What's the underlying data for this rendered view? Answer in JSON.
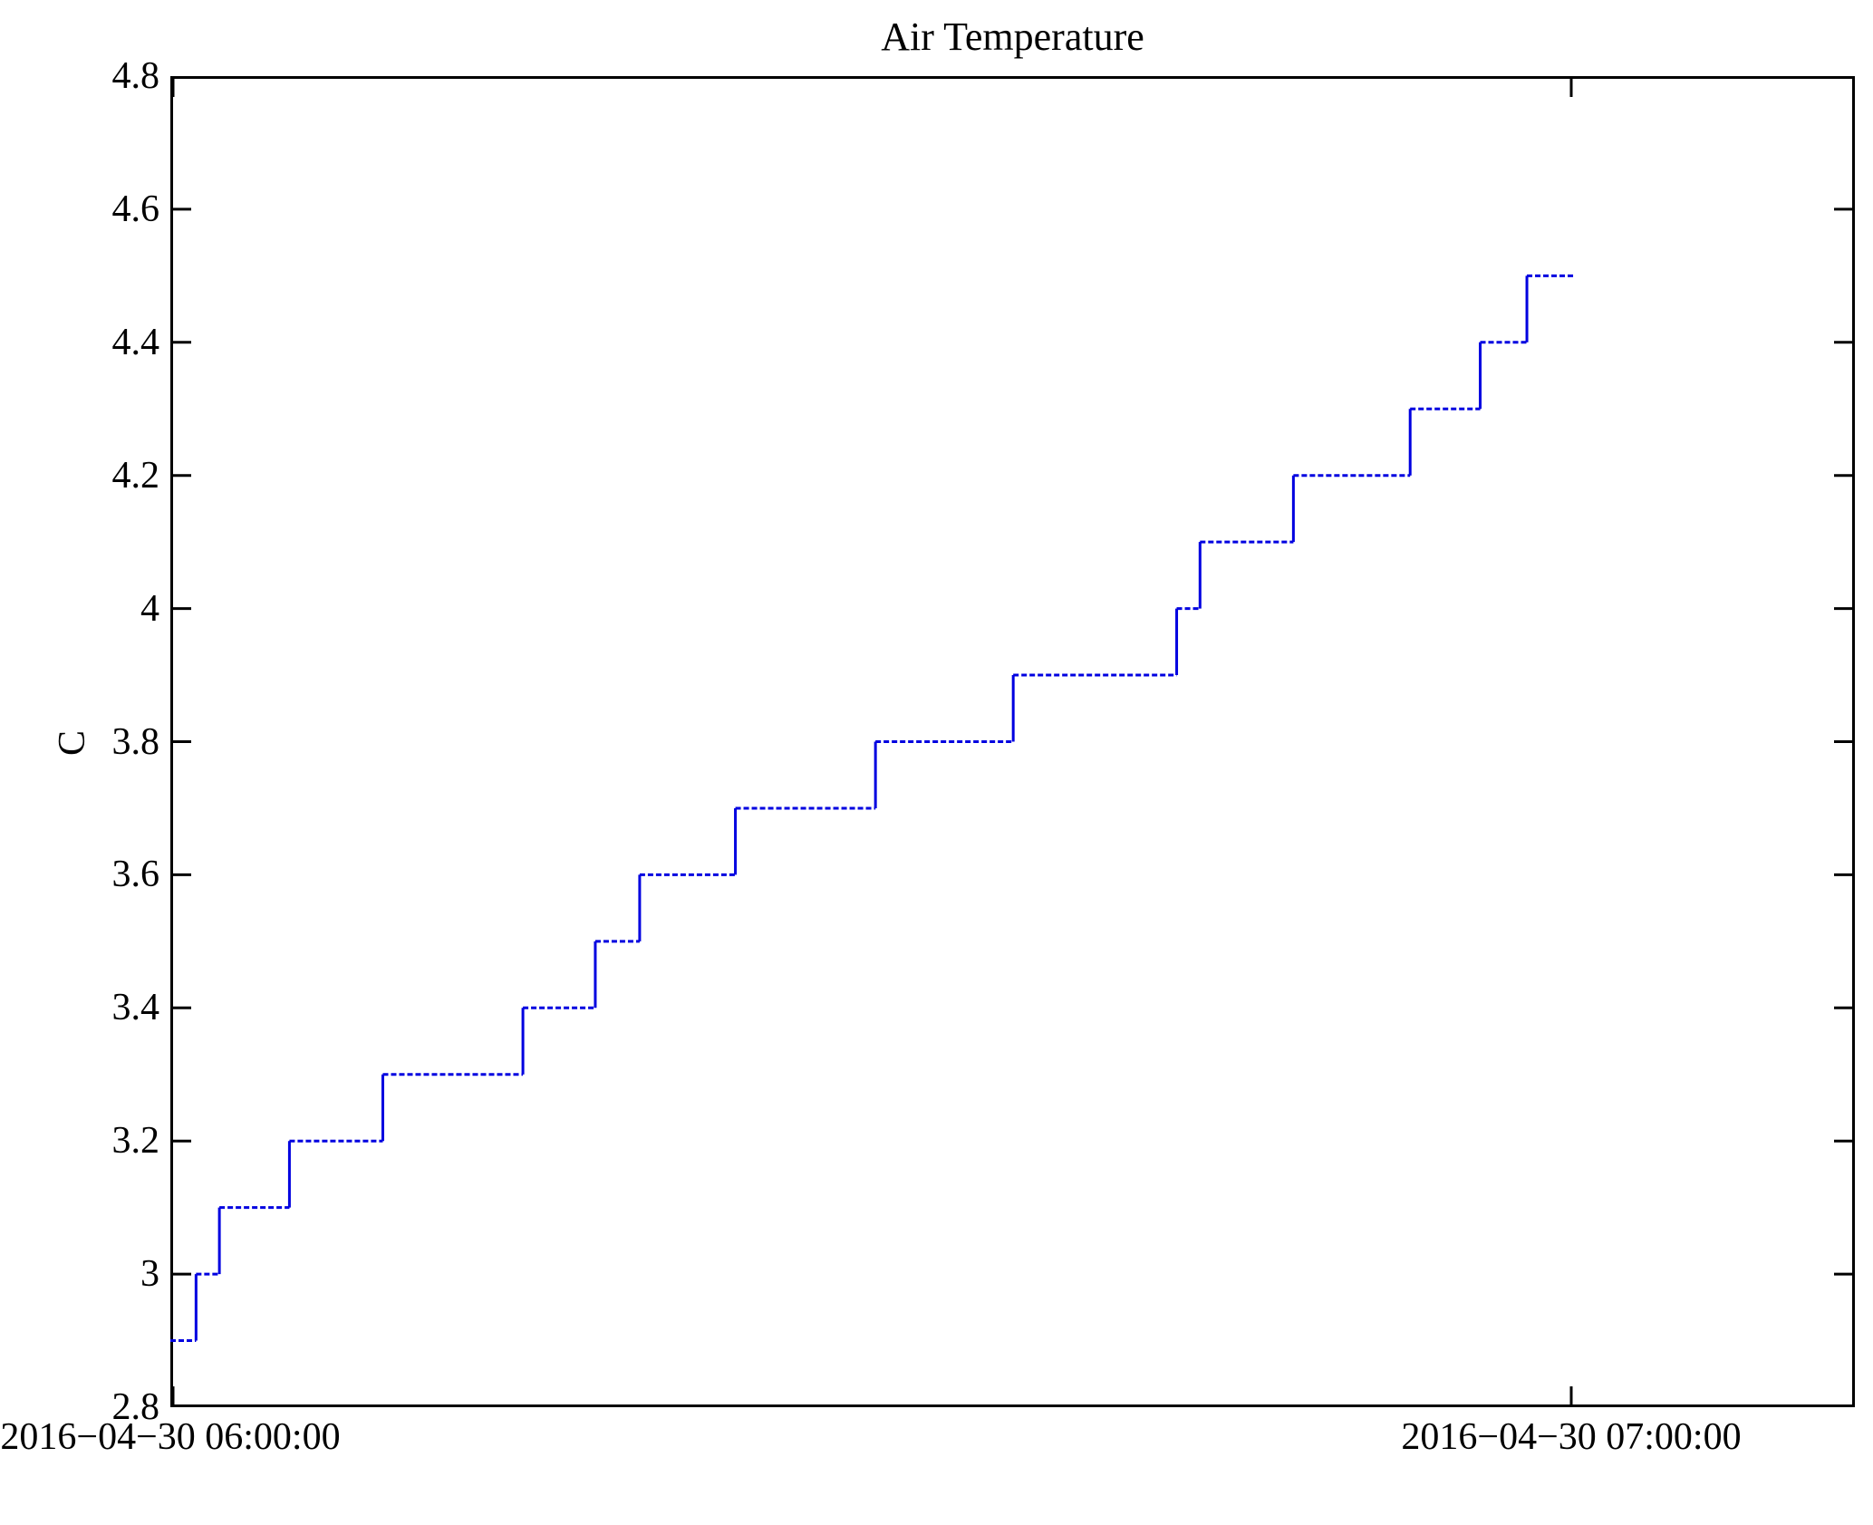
{
  "title": "Air Temperature",
  "chart_data": {
    "type": "line",
    "line_style": "step-post",
    "title": "Air Temperature",
    "xlabel": "",
    "ylabel": "C",
    "grid": false,
    "legend": null,
    "line_color": "#0000e0",
    "axis_color": "#000000",
    "background_color": "#ffffff",
    "ylim": [
      2.8,
      4.8
    ],
    "y_ticks": [
      {
        "label": "2.8",
        "value": 2.8
      },
      {
        "label": "3",
        "value": 3.0
      },
      {
        "label": "3.2",
        "value": 3.2
      },
      {
        "label": "3.4",
        "value": 3.4
      },
      {
        "label": "3.6",
        "value": 3.6
      },
      {
        "label": "3.8",
        "value": 3.8
      },
      {
        "label": "4",
        "value": 4.0
      },
      {
        "label": "4.2",
        "value": 4.2
      },
      {
        "label": "4.4",
        "value": 4.4
      },
      {
        "label": "4.6",
        "value": 4.6
      },
      {
        "label": "4.8",
        "value": 4.8
      }
    ],
    "x_ticks": [
      {
        "label": "2016−04−30 06:00:00",
        "minutes": 0
      },
      {
        "label": "2016−04−30 07:00:00",
        "minutes": 60
      }
    ],
    "x_range_minutes": [
      0,
      72.1
    ],
    "series": [
      {
        "name": "Air Temperature",
        "unit": "C",
        "steps": [
          {
            "time": "2016-04-30 06:00:00",
            "minutes": 0.0,
            "value": 2.9
          },
          {
            "time": "2016-04-30 06:01:00",
            "minutes": 1.1,
            "value": 3.0
          },
          {
            "time": "2016-04-30 06:02:00",
            "minutes": 2.1,
            "value": 3.1
          },
          {
            "time": "2016-04-30 06:05:00",
            "minutes": 5.1,
            "value": 3.2
          },
          {
            "time": "2016-04-30 06:09:00",
            "minutes": 9.1,
            "value": 3.3
          },
          {
            "time": "2016-04-30 06:15:00",
            "minutes": 15.1,
            "value": 3.4
          },
          {
            "time": "2016-04-30 06:18:00",
            "minutes": 18.2,
            "value": 3.5
          },
          {
            "time": "2016-04-30 06:20:00",
            "minutes": 20.1,
            "value": 3.6
          },
          {
            "time": "2016-04-30 06:24:00",
            "minutes": 24.2,
            "value": 3.7
          },
          {
            "time": "2016-04-30 06:30:00",
            "minutes": 30.2,
            "value": 3.8
          },
          {
            "time": "2016-04-30 06:36:00",
            "minutes": 36.1,
            "value": 3.9
          },
          {
            "time": "2016-04-30 06:43:00",
            "minutes": 43.1,
            "value": 4.0
          },
          {
            "time": "2016-04-30 06:44:00",
            "minutes": 44.1,
            "value": 4.1
          },
          {
            "time": "2016-04-30 06:48:00",
            "minutes": 48.1,
            "value": 4.2
          },
          {
            "time": "2016-04-30 06:53:00",
            "minutes": 53.1,
            "value": 4.3
          },
          {
            "time": "2016-04-30 06:56:00",
            "minutes": 56.1,
            "value": 4.4
          },
          {
            "time": "2016-04-30 06:58:00",
            "minutes": 58.1,
            "value": 4.5
          }
        ],
        "series_end": {
          "time": "2016-04-30 07:00:00",
          "minutes": 60.1
        }
      }
    ]
  }
}
